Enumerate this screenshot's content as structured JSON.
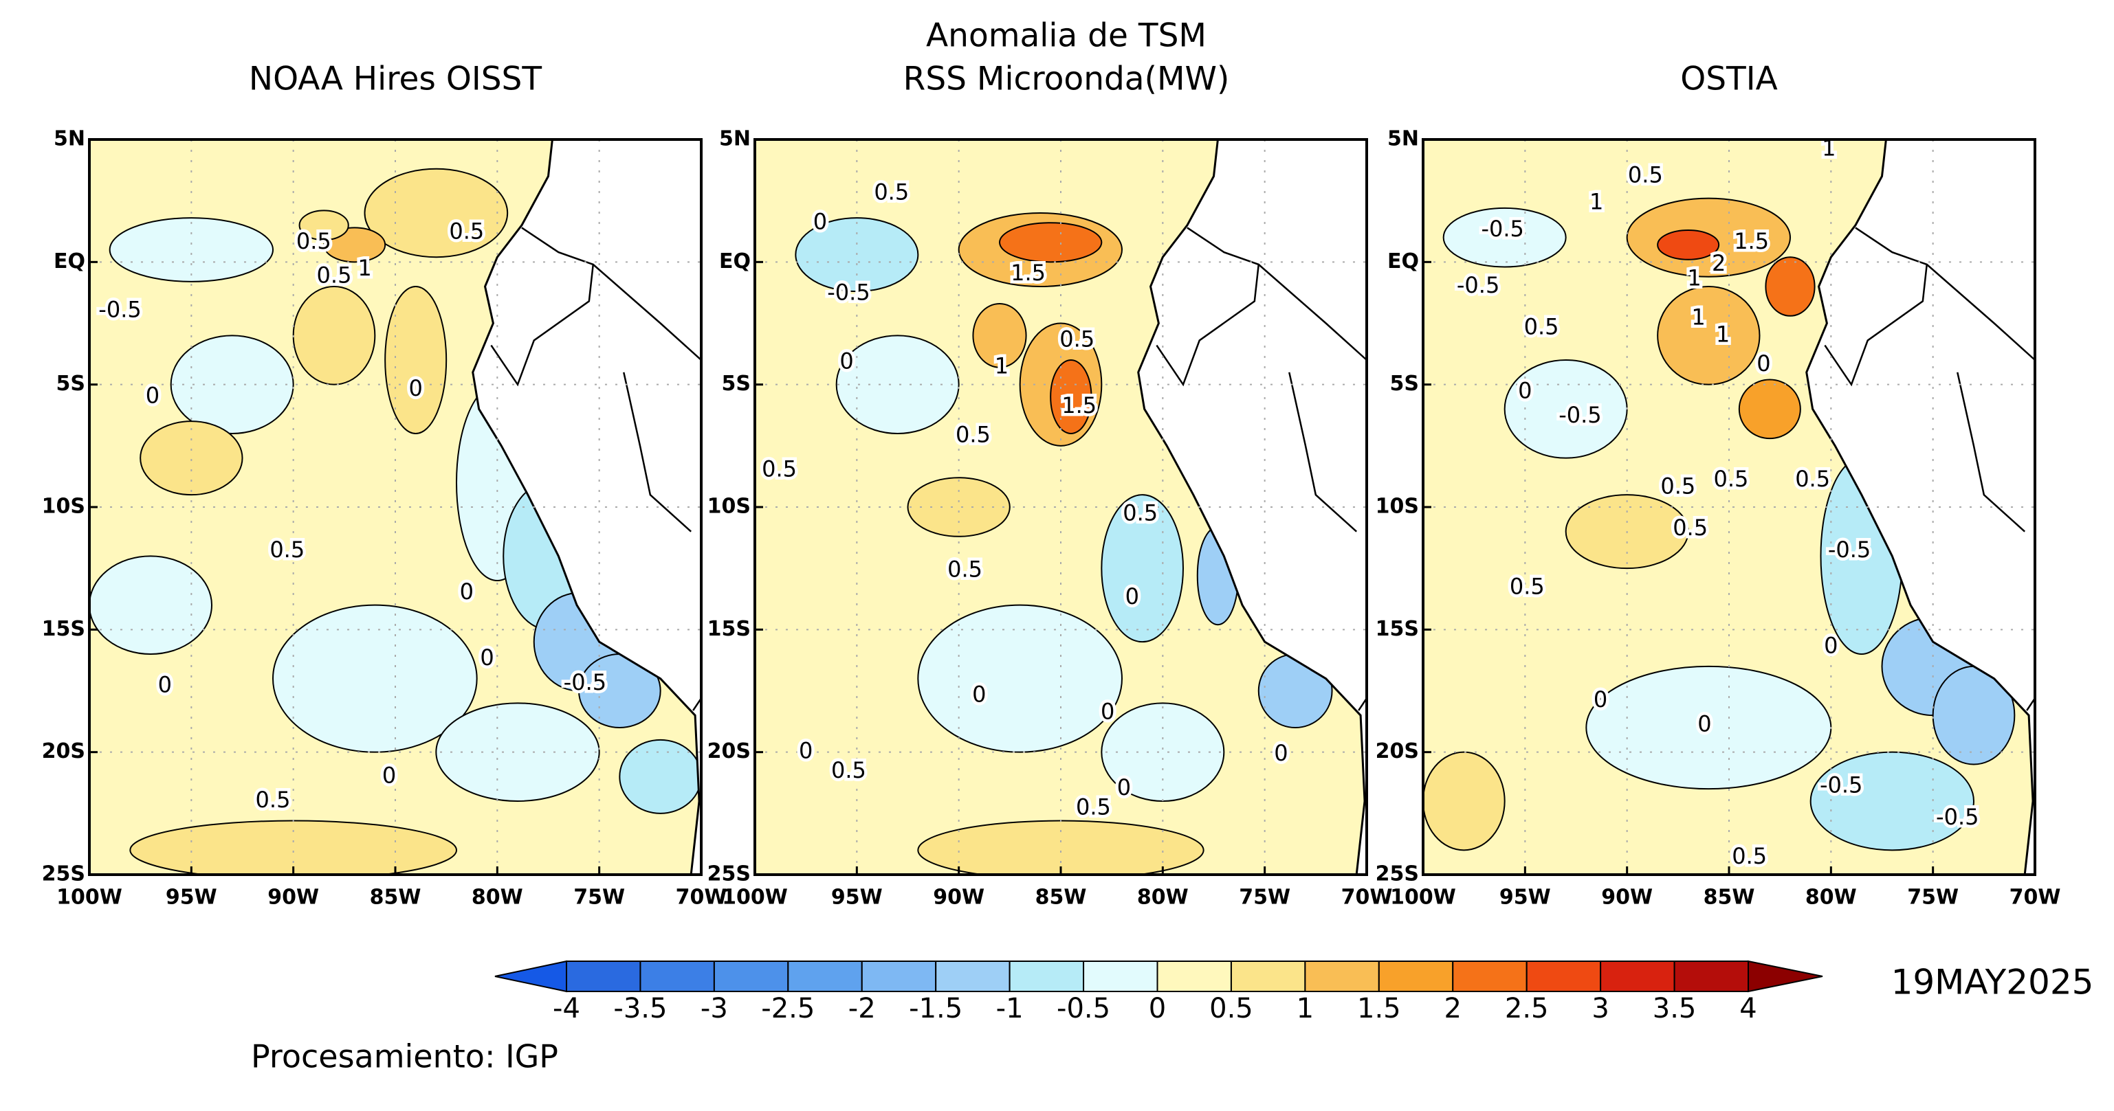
{
  "title": "Anomalia de TSM",
  "panels": [
    {
      "title": "NOAA Hires OISST",
      "contour_labels": [
        "0.5",
        "-0.5",
        "0.5",
        "1",
        "0.5",
        "0",
        "0",
        "0.5",
        "0",
        "0",
        "-0.5",
        "0",
        "0",
        "0.5"
      ]
    },
    {
      "title": "RSS Microonda(MW)",
      "contour_labels": [
        "0.5",
        "0",
        "-0.5",
        "1.5",
        "0",
        "0.5",
        "1",
        "1.5",
        "0.5",
        "0.5",
        "0.5",
        "0.5",
        "0",
        "0",
        "0",
        "0",
        "0.5",
        "0",
        "0.5",
        "0"
      ]
    },
    {
      "title": "OSTIA",
      "contour_labels": [
        "0.5",
        "1",
        "1",
        "-0.5",
        "-0.5",
        "1.5",
        "2",
        "1",
        "0.5",
        "1",
        "1",
        "0",
        "0",
        "-0.5",
        "0.5",
        "0.5",
        "0.5",
        "0.5",
        "-0.5",
        "0.5",
        "0",
        "0",
        "0",
        "-0.5",
        "-0.5",
        "0.5"
      ]
    }
  ],
  "lat_labels": [
    "5N",
    "EQ",
    "5S",
    "10S",
    "15S",
    "20S",
    "25S"
  ],
  "lon_labels": [
    "100W",
    "95W",
    "90W",
    "85W",
    "80W",
    "75W",
    "70W"
  ],
  "colorbar": {
    "levels": [
      -4,
      -3.5,
      -3,
      -2.5,
      -2,
      -1.5,
      -1,
      -0.5,
      0,
      0.5,
      1,
      1.5,
      2,
      2.5,
      3,
      3.5,
      4
    ],
    "colors": [
      "#1559e6",
      "#2a6ae0",
      "#3c7fe6",
      "#4d91ea",
      "#5fa2ee",
      "#7eb8f3",
      "#9ecff6",
      "#b6ebf7",
      "#e2fbfd",
      "#fff8bd",
      "#fbe48a",
      "#f9be55",
      "#f8a12a",
      "#f57218",
      "#ef4a12",
      "#d8220f",
      "#b40d0a",
      "#8c0000"
    ]
  },
  "date": "19MAY2025",
  "credit": "Procesamiento: IGP"
}
